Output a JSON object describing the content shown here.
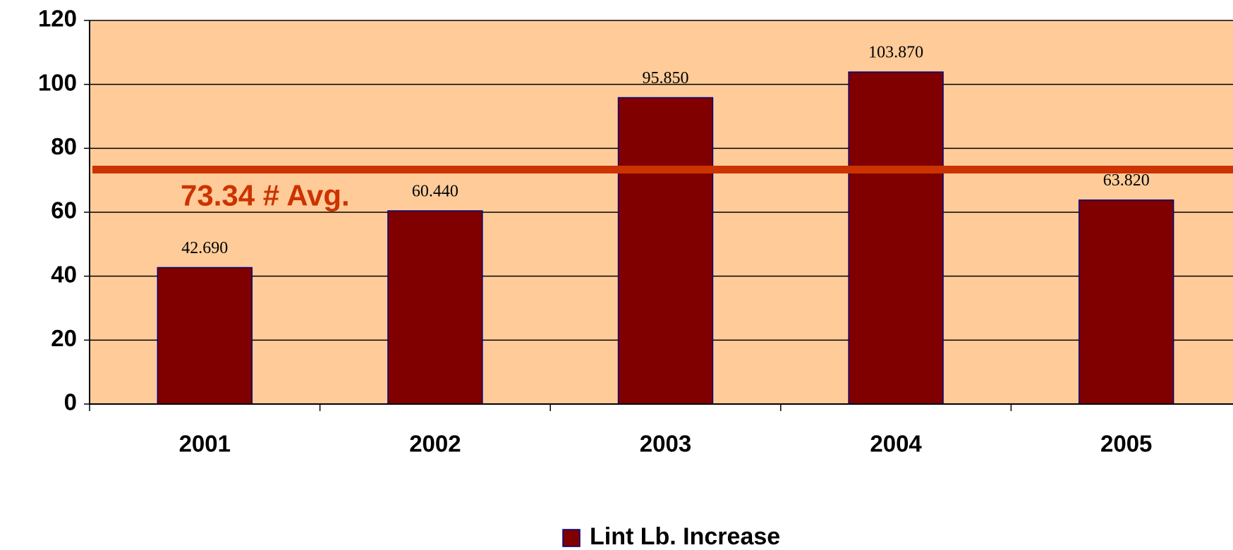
{
  "chart_data": {
    "type": "bar",
    "categories": [
      "2001",
      "2002",
      "2003",
      "2004",
      "2005"
    ],
    "series": [
      {
        "name": "Lint Lb. Increase",
        "color": "#800000",
        "values": [
          42.69,
          60.44,
          95.85,
          103.87,
          63.82
        ],
        "value_labels": [
          "42.690",
          "60.440",
          "95.850",
          "103.870",
          "63.820"
        ]
      }
    ],
    "ylim": [
      0,
      120
    ],
    "yticks": [
      0,
      20,
      40,
      60,
      80,
      100,
      120
    ],
    "grid": true,
    "plot_background": "#FFCC99",
    "average": {
      "value": 73.34,
      "label": "73.34 # Avg.",
      "color": "#CC3300"
    },
    "legend": "bottom"
  }
}
